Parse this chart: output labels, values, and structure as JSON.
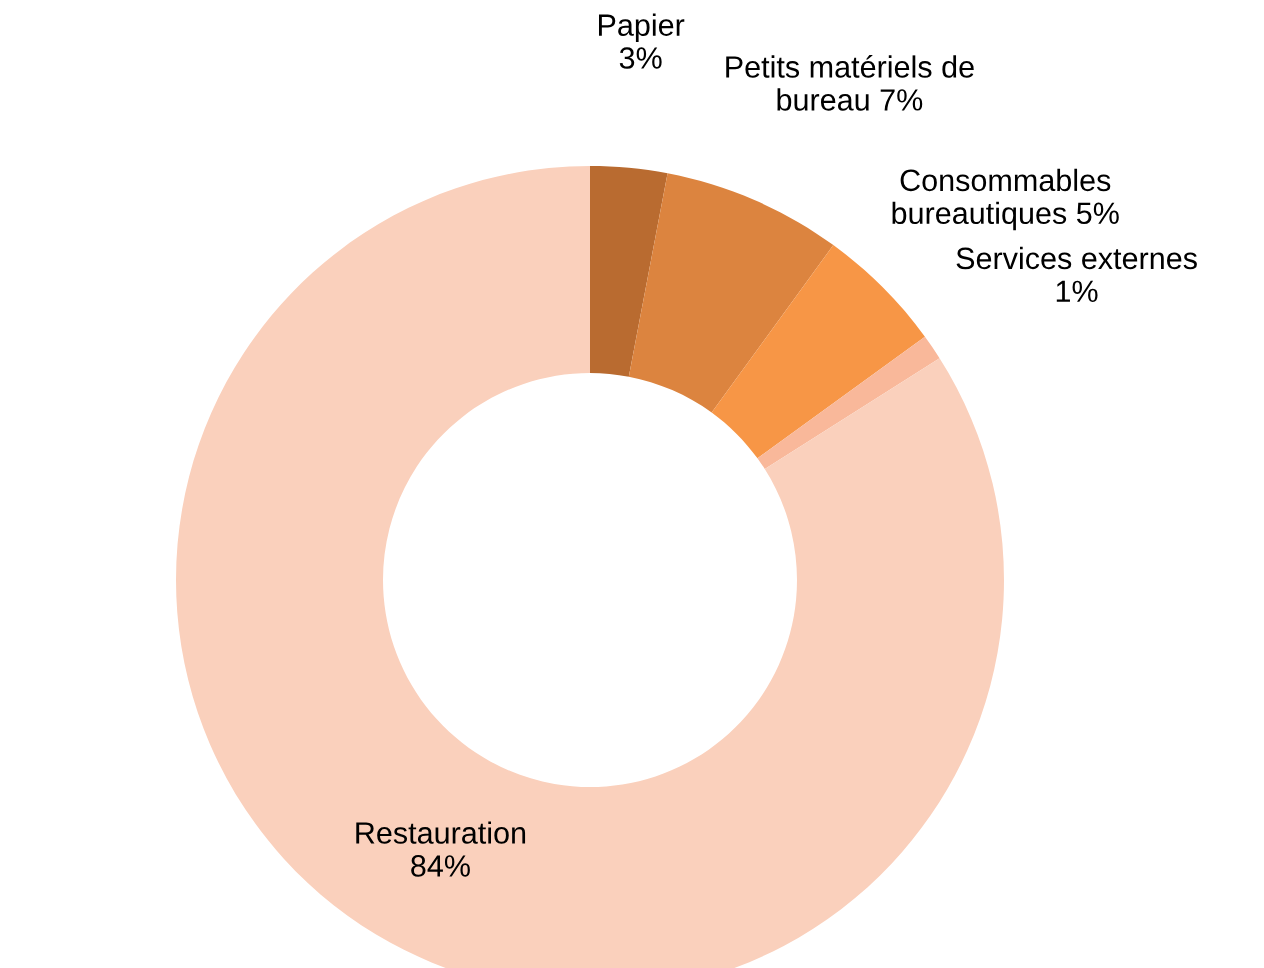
{
  "chart_data": {
    "type": "donut",
    "categories": [
      "Papier",
      "Petits matériels de bureau",
      "Consommables bureautiques",
      "Services externes",
      "Restauration"
    ],
    "values": [
      3,
      7,
      5,
      1,
      84
    ],
    "value_labels": [
      "3%",
      "7%",
      "5%",
      "1%",
      "84%"
    ],
    "colors": [
      "#b96b30",
      "#dc843f",
      "#f79646",
      "#f9b89a",
      "#fad0bc"
    ],
    "legend": false
  }
}
